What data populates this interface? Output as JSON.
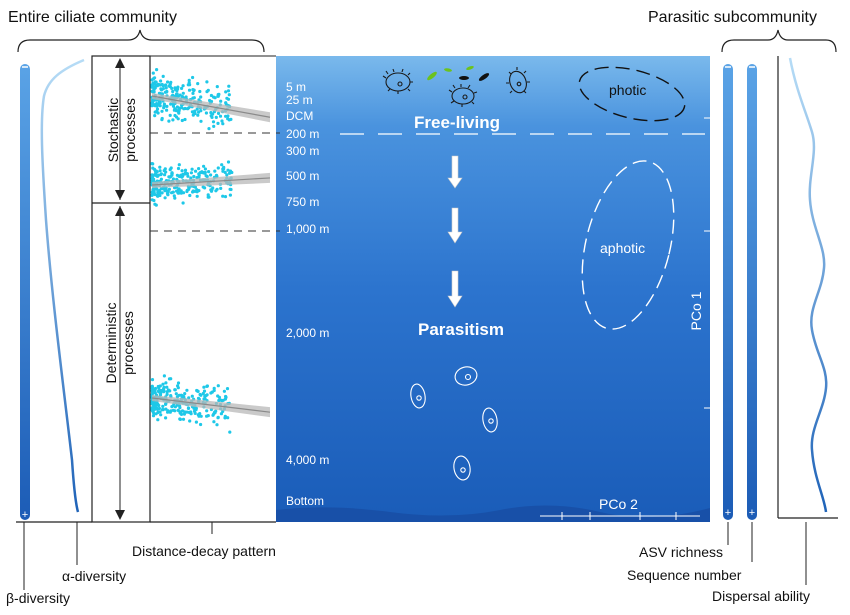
{
  "headers": {
    "left": "Entire ciliate community",
    "right": "Parasitic subcommunity"
  },
  "processes": {
    "stochastic": [
      "Stochastic",
      "processes"
    ],
    "deterministic": [
      "Deterministic",
      "processes"
    ]
  },
  "depth_labels": [
    "5 m",
    "25 m",
    "DCM",
    "200 m",
    "300 m",
    "500 m",
    "750 m",
    "1,000 m",
    "2,000 m",
    "4,000 m",
    "Bottom"
  ],
  "ocean": {
    "free_living": "Free-living",
    "parasitism": "Parasitism",
    "photic": "photic",
    "aphotic": "aphotic",
    "pco1": "PCo 1",
    "pco2": "PCo 2"
  },
  "bottom_labels": {
    "beta": "β-diversity",
    "alpha": "α-diversity",
    "distance_decay": "Distance-decay pattern",
    "asv_richness": "ASV richness",
    "sequence_number": "Sequence number",
    "dispersal": "Dispersal ability"
  },
  "colors": {
    "ocean_top": "#6fb4ea",
    "ocean_bottom": "#1a5cb8",
    "scatter_points": "#1ec8e8",
    "bar_blue": "#2060b8"
  }
}
